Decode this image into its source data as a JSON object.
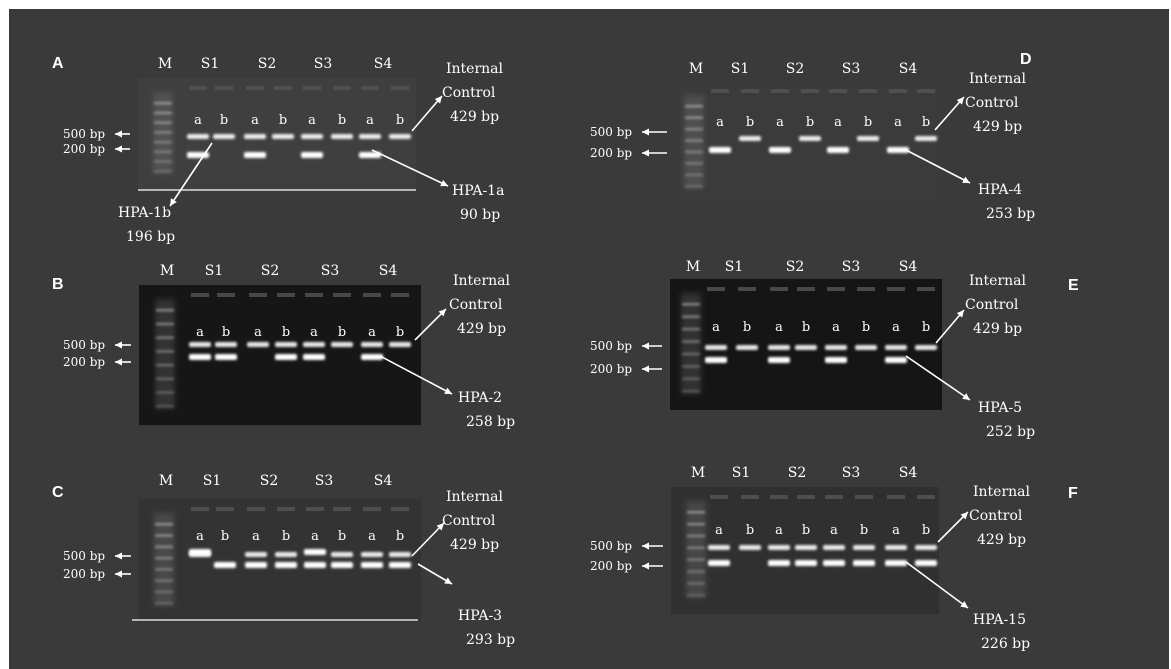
{
  "panels": [
    {
      "letter": "A",
      "lanes": [
        "M",
        "S1",
        "S2",
        "S3",
        "S4"
      ],
      "sub": [
        "a",
        "b",
        "a",
        "b",
        "a",
        "b",
        "a",
        "b"
      ],
      "markers": [
        "500 bp",
        "200 bp"
      ],
      "control": [
        "Internal",
        "Control",
        "429 bp"
      ],
      "alleles": [
        {
          "text": [
            "HPA-1a",
            "90 bp"
          ]
        },
        {
          "text": [
            "HPA-1b",
            "196 bp"
          ]
        }
      ]
    },
    {
      "letter": "B",
      "lanes": [
        "M",
        "S1",
        "S2",
        "S3",
        "S4"
      ],
      "sub": [
        "a",
        "b",
        "a",
        "b",
        "a",
        "b",
        "a",
        "b"
      ],
      "markers": [
        "500 bp",
        "200 bp"
      ],
      "control": [
        "Internal",
        "Control",
        "429 bp"
      ],
      "alleles": [
        {
          "text": [
            "HPA-2",
            "258 bp"
          ]
        }
      ]
    },
    {
      "letter": "C",
      "lanes": [
        "M",
        "S1",
        "S2",
        "S3",
        "S4"
      ],
      "sub": [
        "a",
        "b",
        "a",
        "b",
        "a",
        "b",
        "a",
        "b"
      ],
      "markers": [
        "500 bp",
        "200 bp"
      ],
      "control": [
        "Internal",
        "Control",
        "429 bp"
      ],
      "alleles": [
        {
          "text": [
            "HPA-3",
            "293 bp"
          ]
        }
      ]
    },
    {
      "letter": "D",
      "lanes": [
        "M",
        "S1",
        "S2",
        "S3",
        "S4"
      ],
      "sub": [
        "a",
        "b",
        "a",
        "b",
        "a",
        "b",
        "a",
        "b"
      ],
      "markers": [
        "500 bp",
        "200 bp"
      ],
      "control": [
        "Internal",
        "Control",
        "429 bp"
      ],
      "alleles": [
        {
          "text": [
            "HPA-4",
            "253 bp"
          ]
        }
      ]
    },
    {
      "letter": "E",
      "lanes": [
        "M",
        "S1",
        "S2",
        "S3",
        "S4"
      ],
      "sub": [
        "a",
        "b",
        "a",
        "b",
        "a",
        "b",
        "a",
        "b"
      ],
      "markers": [
        "500 bp",
        "200 bp"
      ],
      "control": [
        "Internal",
        "Control",
        "429 bp"
      ],
      "alleles": [
        {
          "text": [
            "HPA-5",
            "252 bp"
          ]
        }
      ]
    },
    {
      "letter": "F",
      "lanes": [
        "M",
        "S1",
        "S2",
        "S3",
        "S4"
      ],
      "sub": [
        "a",
        "b",
        "a",
        "b",
        "a",
        "b",
        "a",
        "b"
      ],
      "markers": [
        "500 bp",
        "200 bp"
      ],
      "control": [
        "Internal",
        "Control",
        "429 bp"
      ],
      "alleles": [
        {
          "text": [
            "HPA-15",
            "226 bp"
          ]
        }
      ]
    }
  ],
  "colors": {
    "background": "#3a3a3a",
    "gel": "#222222",
    "band": "#ffffff",
    "text": "#ffffff"
  }
}
